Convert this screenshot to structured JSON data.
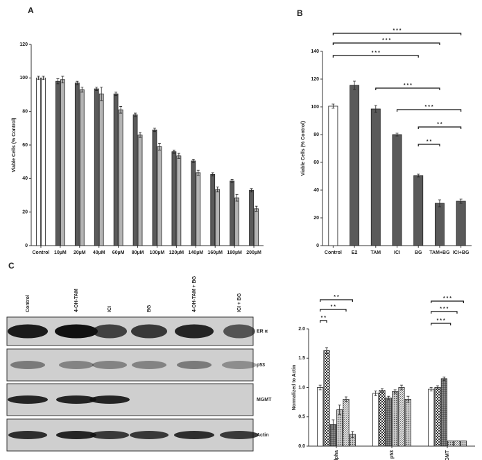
{
  "panel_labels": [
    "A",
    "B",
    "C"
  ],
  "chart_data": [
    {
      "type": "bar",
      "ylabel": "Viable Cells (% Control)",
      "categories": [
        "Control",
        "10µM",
        "20µM",
        "40µM",
        "60µM",
        "80µM",
        "100µM",
        "120µM",
        "140µM",
        "160µM",
        "180µM",
        "200µM"
      ],
      "series": [
        {
          "colors": [
            "#ffffff",
            "#5a5a5a",
            "#5a5a5a",
            "#5a5a5a",
            "#5a5a5a",
            "#5a5a5a",
            "#5a5a5a",
            "#5a5a5a",
            "#5a5a5a",
            "#5a5a5a",
            "#5a5a5a",
            "#5a5a5a"
          ],
          "values": [
            100,
            98,
            97,
            93.5,
            90.5,
            78,
            69,
            56,
            50.5,
            42.5,
            38.5,
            33
          ],
          "errors": [
            1,
            1.5,
            1,
            1,
            1,
            1,
            1,
            1,
            1,
            1,
            1,
            1
          ]
        },
        {
          "colors": [
            "#ffffff",
            "#b4b4b4",
            "#b4b4b4",
            "#b4b4b4",
            "#b4b4b4",
            "#b4b4b4",
            "#b4b4b4",
            "#b4b4b4",
            "#b4b4b4",
            "#b4b4b4",
            "#b4b4b4",
            "#b4b4b4"
          ],
          "values": [
            100,
            99,
            93,
            90.5,
            81,
            66,
            59,
            53.5,
            43.5,
            33.5,
            28.5,
            22
          ],
          "errors": [
            1,
            2,
            1.5,
            4,
            2,
            1.5,
            2,
            1.5,
            1.5,
            1.5,
            2,
            1.5
          ]
        }
      ],
      "ylim": [
        0,
        120
      ],
      "yticks": [
        0,
        20,
        40,
        60,
        80,
        100,
        120
      ]
    },
    {
      "type": "bar",
      "ylabel": "Viable Cells (% Control)",
      "categories": [
        "Control",
        "E2",
        "TAM",
        "ICI",
        "BG",
        "TAM+BG",
        "ICI+BG"
      ],
      "series": [
        {
          "colors": [
            "#ffffff",
            "#5a5a5a",
            "#5a5a5a",
            "#5a5a5a",
            "#5a5a5a",
            "#5a5a5a",
            "#5a5a5a"
          ],
          "values": [
            100.5,
            115.5,
            98.5,
            80,
            50.5,
            30.5,
            32
          ],
          "errors": [
            1.5,
            3,
            2.5,
            1,
            1,
            2.5,
            1.5
          ]
        }
      ],
      "ylim": [
        0,
        140
      ],
      "yticks": [
        0,
        20,
        40,
        60,
        80,
        100,
        120,
        140
      ],
      "brackets": [
        {
          "from": 0,
          "to": 6,
          "label": "* * *"
        },
        {
          "from": 0,
          "to": 5,
          "label": "* * *"
        },
        {
          "from": 0,
          "to": 4,
          "label": "* * *"
        },
        {
          "from": 2,
          "to": 5,
          "label": "* * *"
        },
        {
          "from": 3,
          "to": 6,
          "label": "* * *"
        },
        {
          "from": 4,
          "to": 6,
          "label": "* *"
        },
        {
          "from": 4,
          "to": 5,
          "label": "* *"
        }
      ]
    },
    {
      "type": "bar",
      "ylabel": "Normalized to Actin",
      "xlabel_rotation": -90,
      "categories": [
        "ER Alpha",
        "p53",
        "MGMT"
      ],
      "series": [
        {
          "color": "#ffffff",
          "pattern": "none",
          "values": [
            1.0,
            0.9,
            0.97
          ],
          "errors": [
            0.04,
            0.04,
            0.03
          ]
        },
        {
          "color": "#ffffff",
          "pattern": "checker",
          "values": [
            1.63,
            0.95,
            1.0
          ],
          "errors": [
            0.05,
            0.03,
            0.03
          ]
        },
        {
          "color": "#888888",
          "pattern": "grid",
          "values": [
            0.37,
            0.82,
            1.15
          ],
          "errors": [
            0.08,
            0.03,
            0.03
          ]
        },
        {
          "color": "#cccccc",
          "pattern": "dots",
          "values": [
            0.62,
            0.93,
            0.09
          ],
          "errors": [
            0.08,
            0.03,
            0
          ]
        },
        {
          "color": "#ffffff",
          "pattern": "diagonal",
          "values": [
            0.8,
            1.0,
            0.09
          ],
          "errors": [
            0.04,
            0.04,
            0
          ]
        },
        {
          "color": "#dddddd",
          "pattern": "dots",
          "values": [
            0.2,
            0.8,
            0.09
          ],
          "errors": [
            0.05,
            0.05,
            0
          ]
        }
      ],
      "ylim": [
        0,
        2
      ],
      "yticks": [
        {
          "value": 0,
          "label": "0.0"
        },
        {
          "value": 0.5,
          "label": "0.5"
        },
        {
          "value": 1,
          "label": "1.0"
        },
        {
          "value": 1.5,
          "label": "1.5"
        },
        {
          "value": 2,
          "label": "2.0"
        }
      ],
      "brackets": [
        {
          "category": 0,
          "from": 0,
          "to": 5,
          "label": "* *"
        },
        {
          "category": 0,
          "from": 0,
          "to": 4,
          "label": "* *"
        },
        {
          "category": 0,
          "from": 0,
          "to": 1,
          "label": "* *"
        },
        {
          "category": 2,
          "from": 0,
          "to": 5,
          "label": "* * *"
        },
        {
          "category": 2,
          "from": 0,
          "to": 4,
          "label": "* * *"
        },
        {
          "category": 2,
          "from": 0,
          "to": 3,
          "label": "* * *"
        }
      ]
    }
  ],
  "blot": {
    "lanes": [
      "Control",
      "4-OH-TAM",
      "ICI",
      "BG",
      "4-OH-TAM + BG",
      "ICI + BG"
    ],
    "rows": [
      "ER α",
      "p53",
      "MGMT",
      "Actin"
    ]
  }
}
